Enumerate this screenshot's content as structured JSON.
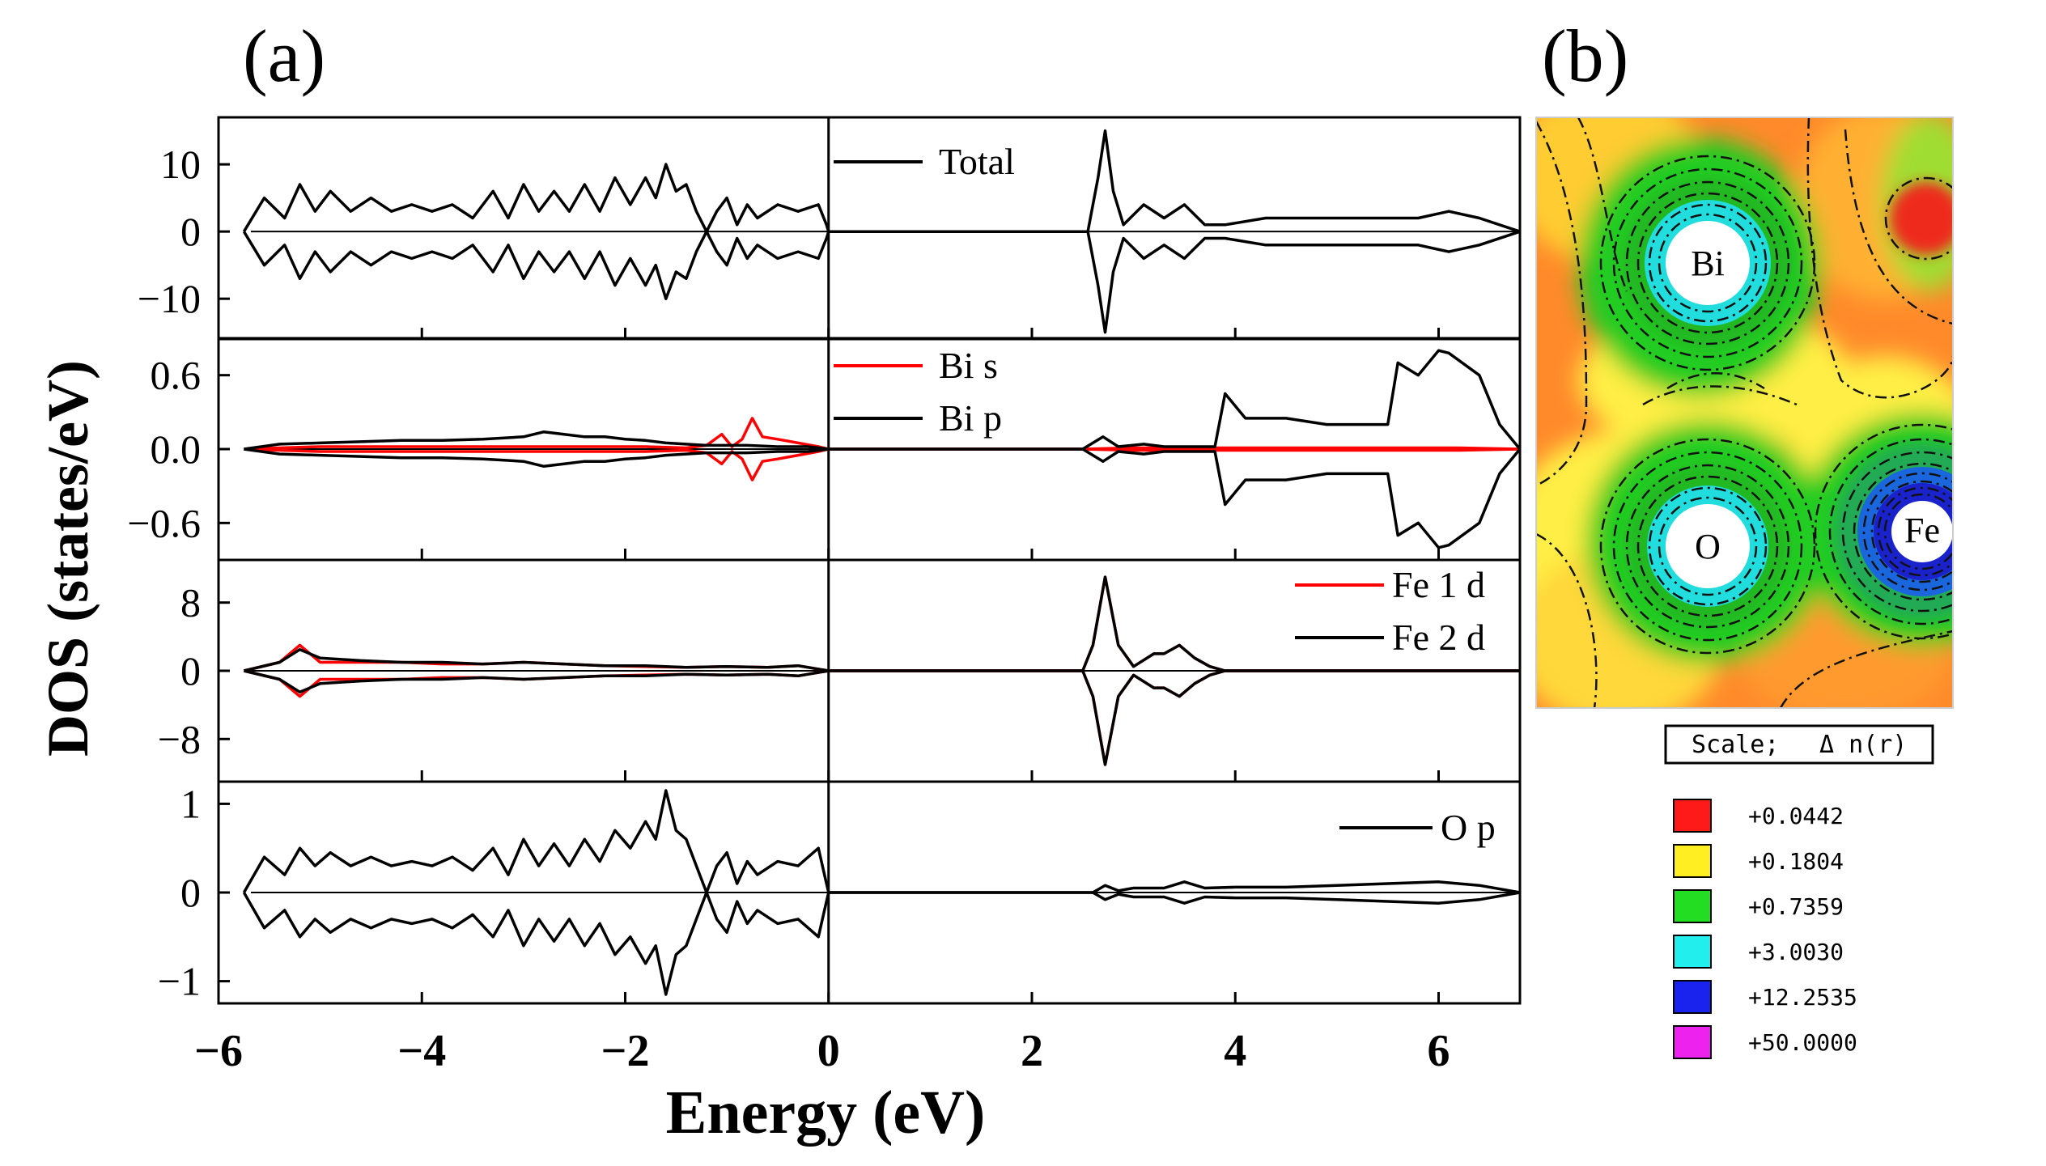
{
  "panels": {
    "a": "(a)",
    "b": "(b)"
  },
  "chart_data": {
    "type": "line",
    "title": "",
    "xlabel": "Energy (eV)",
    "ylabel": "DOS (states/eV)",
    "xlim": [
      -6,
      6.8
    ],
    "xticks": [
      -6,
      -4,
      -2,
      0,
      2,
      4,
      6
    ],
    "xtick_labels": [
      "−6",
      "−4",
      "−2",
      "0",
      "2",
      "4",
      "6"
    ],
    "subplots": [
      {
        "name": "total",
        "ylim": [
          -16,
          17
        ],
        "yticks": [
          10,
          0,
          -10
        ],
        "ytick_labels": [
          "10",
          "0",
          "−10"
        ],
        "legend": [
          "Total"
        ],
        "legend_loc": "top-left-of-right-half",
        "series": [
          {
            "name": "Total",
            "color": "#000000",
            "x": [
              -5.75,
              -5.55,
              -5.35,
              -5.2,
              -5.05,
              -4.9,
              -4.7,
              -4.5,
              -4.3,
              -4.1,
              -3.9,
              -3.7,
              -3.5,
              -3.3,
              -3.15,
              -3.0,
              -2.85,
              -2.7,
              -2.55,
              -2.4,
              -2.25,
              -2.1,
              -1.95,
              -1.8,
              -1.7,
              -1.6,
              -1.5,
              -1.4,
              -1.3,
              -1.2,
              -1.1,
              -1.0,
              -0.9,
              -0.8,
              -0.7,
              -0.5,
              -0.3,
              -0.1,
              -0.02,
              0.0,
              2.55,
              2.65,
              2.72,
              2.8,
              2.9,
              3.1,
              3.3,
              3.5,
              3.7,
              3.9,
              4.3,
              4.8,
              5.3,
              5.8,
              6.1,
              6.4,
              6.8
            ],
            "y": [
              0,
              5,
              2,
              7,
              3,
              6,
              3,
              5,
              3,
              4,
              3,
              4,
              2,
              6,
              2,
              7,
              3,
              6,
              3,
              7,
              3,
              8,
              4,
              8,
              5,
              10,
              6,
              7,
              3,
              0,
              3,
              5,
              1,
              4,
              2,
              4,
              3,
              4,
              1,
              0,
              0,
              8,
              15,
              6,
              1,
              4,
              2,
              4,
              1,
              1,
              2,
              2,
              2,
              2,
              3,
              2,
              0
            ]
          }
        ]
      },
      {
        "name": "bi",
        "ylim": [
          -0.9,
          0.9
        ],
        "yticks": [
          0.6,
          0.0,
          -0.6
        ],
        "ytick_labels": [
          "0.6",
          "0.0",
          "−0.6"
        ],
        "legend": [
          "Bi s",
          "Bi p"
        ],
        "legend_loc": "top-left-of-right-half",
        "series": [
          {
            "name": "Bi s",
            "color": "#ff0000",
            "x": [
              -5.75,
              -5.4,
              -5.0,
              -4.6,
              -4.2,
              -3.8,
              -3.4,
              -3.0,
              -2.6,
              -2.2,
              -1.8,
              -1.4,
              -1.2,
              -1.05,
              -0.95,
              -0.85,
              -0.75,
              -0.65,
              -0.5,
              -0.3,
              -0.1,
              0.0,
              2.5,
              3.0,
              3.4,
              3.8,
              4.5,
              5.5,
              6.2,
              6.8
            ],
            "y": [
              0,
              0.01,
              0.02,
              0.02,
              0.02,
              0.02,
              0.02,
              0.02,
              0.02,
              0.02,
              0.02,
              0.01,
              0.03,
              0.12,
              0.02,
              0.08,
              0.25,
              0.1,
              0.08,
              0.05,
              0.02,
              0,
              0,
              0.01,
              0.01,
              0.01,
              0.01,
              0.01,
              0.01,
              0
            ]
          },
          {
            "name": "Bi p",
            "color": "#000000",
            "x": [
              -5.75,
              -5.4,
              -5.0,
              -4.6,
              -4.2,
              -3.8,
              -3.4,
              -3.0,
              -2.8,
              -2.6,
              -2.4,
              -2.2,
              -2.0,
              -1.8,
              -1.6,
              -1.4,
              -1.2,
              -1.0,
              -0.8,
              -0.5,
              -0.2,
              0.0,
              2.5,
              2.7,
              2.85,
              3.1,
              3.3,
              3.8,
              3.9,
              4.1,
              4.5,
              4.9,
              5.3,
              5.5,
              5.6,
              5.8,
              6.0,
              6.1,
              6.4,
              6.6,
              6.8
            ],
            "y": [
              0,
              0.04,
              0.05,
              0.06,
              0.07,
              0.07,
              0.08,
              0.1,
              0.14,
              0.12,
              0.1,
              0.1,
              0.08,
              0.07,
              0.05,
              0.04,
              0.03,
              0.03,
              0.03,
              0.02,
              0.02,
              0,
              0,
              0.1,
              0.02,
              0.04,
              0.02,
              0.02,
              0.45,
              0.25,
              0.25,
              0.2,
              0.2,
              0.2,
              0.7,
              0.6,
              0.8,
              0.78,
              0.6,
              0.2,
              0
            ]
          }
        ]
      },
      {
        "name": "fe",
        "ylim": [
          -13,
          13
        ],
        "yticks": [
          8,
          0,
          -8
        ],
        "ytick_labels": [
          "8",
          "0",
          "−8"
        ],
        "legend": [
          "Fe 1 d",
          "Fe 2 d"
        ],
        "legend_loc": "top-right",
        "series": [
          {
            "name": "Fe 1 d",
            "color": "#ff0000",
            "x": [
              -5.75,
              -5.4,
              -5.2,
              -5.0,
              -4.6,
              -4.2,
              -3.8,
              -3.4,
              -3.0,
              -2.6,
              -2.2,
              -1.8,
              -1.4,
              -1.0,
              -0.6,
              -0.3,
              0.0,
              2.5,
              2.6,
              2.72,
              2.85,
              3.0,
              3.2,
              3.3,
              3.45,
              3.6,
              3.75,
              3.9,
              4.5,
              6.8
            ],
            "y": [
              0,
              1,
              3,
              1,
              1,
              1,
              0.8,
              0.8,
              1,
              0.8,
              0.6,
              0.5,
              0.4,
              0.5,
              0.4,
              0.6,
              0,
              0,
              3,
              11,
              3,
              0.5,
              2,
              2,
              3,
              1.5,
              0.5,
              0,
              0,
              0
            ]
          },
          {
            "name": "Fe 2 d",
            "color": "#000000",
            "x": [
              -5.75,
              -5.4,
              -5.2,
              -5.0,
              -4.6,
              -4.2,
              -3.8,
              -3.4,
              -3.0,
              -2.6,
              -2.2,
              -1.8,
              -1.4,
              -1.0,
              -0.6,
              -0.3,
              0.0,
              2.5,
              2.6,
              2.72,
              2.85,
              3.0,
              3.2,
              3.3,
              3.45,
              3.6,
              3.75,
              3.9,
              4.5,
              6.8
            ],
            "y": [
              0,
              1,
              2.5,
              1.5,
              1.2,
              1,
              1,
              0.8,
              1,
              0.8,
              0.6,
              0.6,
              0.4,
              0.5,
              0.4,
              0.6,
              0,
              0,
              3,
              11,
              3,
              0.5,
              2,
              2,
              3,
              1.5,
              0.5,
              0,
              0,
              0
            ]
          }
        ]
      },
      {
        "name": "o",
        "ylim": [
          -1.25,
          1.25
        ],
        "yticks": [
          1,
          0,
          -1
        ],
        "ytick_labels": [
          "1",
          "0",
          "−1"
        ],
        "legend": [
          "O p"
        ],
        "legend_loc": "top-right",
        "series": [
          {
            "name": "O p",
            "color": "#000000",
            "x": [
              -5.75,
              -5.55,
              -5.35,
              -5.2,
              -5.05,
              -4.9,
              -4.7,
              -4.5,
              -4.3,
              -4.1,
              -3.9,
              -3.7,
              -3.5,
              -3.3,
              -3.15,
              -3.0,
              -2.85,
              -2.7,
              -2.55,
              -2.4,
              -2.25,
              -2.1,
              -1.95,
              -1.8,
              -1.7,
              -1.6,
              -1.5,
              -1.4,
              -1.3,
              -1.2,
              -1.1,
              -1.0,
              -0.9,
              -0.8,
              -0.7,
              -0.5,
              -0.3,
              -0.1,
              -0.02,
              0.0,
              2.6,
              2.72,
              2.85,
              3.0,
              3.3,
              3.5,
              3.7,
              4.0,
              4.5,
              5.0,
              5.5,
              6.0,
              6.4,
              6.8
            ],
            "y": [
              0,
              0.4,
              0.2,
              0.5,
              0.3,
              0.45,
              0.3,
              0.4,
              0.3,
              0.35,
              0.3,
              0.4,
              0.25,
              0.5,
              0.2,
              0.6,
              0.3,
              0.55,
              0.3,
              0.6,
              0.35,
              0.7,
              0.5,
              0.8,
              0.6,
              1.15,
              0.7,
              0.6,
              0.3,
              0,
              0.3,
              0.45,
              0.1,
              0.35,
              0.2,
              0.35,
              0.3,
              0.5,
              0.1,
              0,
              0,
              0.08,
              0.02,
              0.05,
              0.05,
              0.12,
              0.05,
              0.06,
              0.06,
              0.08,
              0.1,
              0.12,
              0.08,
              0
            ]
          }
        ]
      }
    ]
  },
  "density_map": {
    "atoms": [
      "Bi",
      "O",
      "Fe"
    ],
    "scale_label": "Scale;",
    "scale_quantity": "Δ n(r)",
    "colorbar": [
      {
        "value": "+0.0442",
        "color": "#ff1a1a"
      },
      {
        "value": "+0.1804",
        "color": "#ffee22"
      },
      {
        "value": "+0.7359",
        "color": "#22dd22"
      },
      {
        "value": "+3.0030",
        "color": "#22eeee"
      },
      {
        "value": "+12.2535",
        "color": "#1a22ee"
      },
      {
        "value": "+50.0000",
        "color": "#ee22ee"
      }
    ]
  }
}
